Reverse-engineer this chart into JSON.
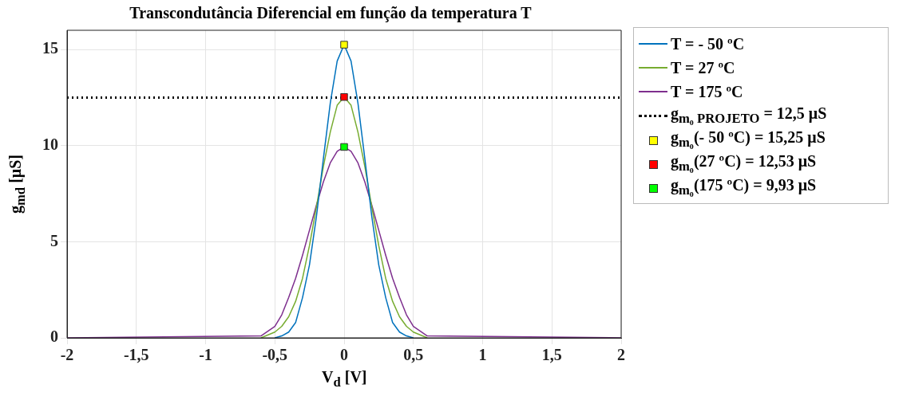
{
  "chart_data": {
    "type": "line",
    "title": "Transcondutância Diferencial em função da temperatura T",
    "xlabel": "V$_{d}$ [V]",
    "ylabel": "g$_{md}$ [μS]",
    "x": [
      -2,
      -0.6,
      -0.5,
      -0.45,
      -0.4,
      -0.35,
      -0.3,
      -0.25,
      -0.2,
      -0.15,
      -0.1,
      -0.05,
      0,
      0.05,
      0.1,
      0.15,
      0.2,
      0.25,
      0.3,
      0.35,
      0.4,
      0.45,
      0.5,
      0.6,
      2
    ],
    "xlim": [
      -2,
      2
    ],
    "xticks": [
      -2,
      {
        "value": -1.5,
        "label": "-1,5"
      },
      -1,
      {
        "value": -0.5,
        "label": "-0,5"
      },
      0,
      {
        "value": 0.5,
        "label": "0,5"
      },
      1,
      {
        "value": 1.5,
        "label": "1,5"
      },
      2
    ],
    "ylim": [
      0,
      16
    ],
    "yticks": [
      0,
      5,
      10,
      15
    ],
    "grid": true,
    "legend": "right",
    "marker": "none",
    "line_style": "solid",
    "series": [
      {
        "name": "T = - 50 ºC",
        "color": "#0072bd",
        "values": [
          null,
          null,
          0,
          0.1,
          0.3,
          0.8,
          2.1,
          3.8,
          6.3,
          9.3,
          12.2,
          14.4,
          15.25,
          14.4,
          12.2,
          9.3,
          6.3,
          3.8,
          2.1,
          0.8,
          0.3,
          0.1,
          0,
          null,
          null
        ]
      },
      {
        "name": "T = 27 ºC",
        "color": "#77ac30",
        "values": [
          null,
          0,
          0.3,
          0.6,
          1.1,
          1.9,
          3.1,
          4.8,
          6.8,
          8.9,
          10.7,
          12.1,
          12.53,
          12.1,
          10.7,
          8.9,
          6.8,
          4.8,
          3.1,
          1.9,
          1.1,
          0.6,
          0.3,
          0,
          null
        ]
      },
      {
        "name": "T = 175 ºC",
        "color": "#7e2f8e",
        "values": [
          0,
          0.1,
          0.6,
          1.2,
          2.1,
          3.1,
          4.3,
          5.6,
          6.9,
          8.1,
          9.1,
          9.7,
          9.93,
          9.7,
          9.1,
          8.1,
          6.9,
          5.6,
          4.3,
          3.1,
          2.1,
          1.2,
          0.6,
          0.1,
          0
        ]
      },
      {
        "name": "g$_{m₀}$(- 50 ºC) = 15,25 μS",
        "type": "scatter",
        "marker": "square",
        "color": "#ffff00",
        "values": [
          null,
          null,
          null,
          null,
          null,
          null,
          null,
          null,
          null,
          null,
          null,
          null,
          15.25,
          null,
          null,
          null,
          null,
          null,
          null,
          null,
          null,
          null,
          null,
          null,
          null
        ]
      },
      {
        "name": "g$_{m₀}$(27 ºC) = 12,53 μS",
        "type": "scatter",
        "marker": "square",
        "color": "#ff0000",
        "values": [
          null,
          null,
          null,
          null,
          null,
          null,
          null,
          null,
          null,
          null,
          null,
          null,
          12.53,
          null,
          null,
          null,
          null,
          null,
          null,
          null,
          null,
          null,
          null,
          null,
          null
        ]
      },
      {
        "name": "g$_{m₀}$(175 ºC) = 9,93 μS",
        "type": "scatter",
        "marker": "square",
        "color": "#00ff00",
        "values": [
          null,
          null,
          null,
          null,
          null,
          null,
          null,
          null,
          null,
          null,
          null,
          null,
          9.93,
          null,
          null,
          null,
          null,
          null,
          null,
          null,
          null,
          null,
          null,
          null,
          null
        ]
      }
    ],
    "ref_lines": [
      {
        "axis": "y",
        "value": 12.5,
        "label": "g$_{m₀ PROJETO}$ = 12,5 μS",
        "color": "#000000",
        "line_style": "dotted"
      }
    ]
  }
}
